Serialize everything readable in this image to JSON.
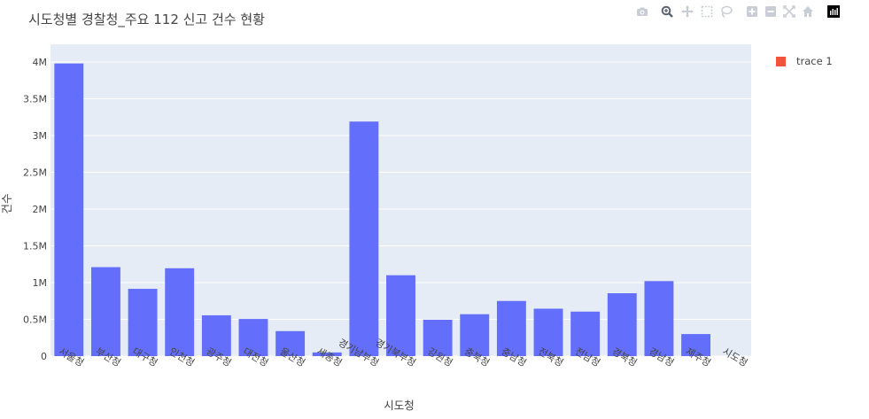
{
  "title": "시도청별 경찰청_주요 112 신고 건수 현황",
  "legend": {
    "label": "trace 1",
    "color": "#ef553b"
  },
  "modebar": {
    "buttons": [
      {
        "name": "camera-icon",
        "label": "Download plot as png"
      },
      {
        "name": "zoom-icon",
        "label": "Zoom"
      },
      {
        "name": "pan-icon",
        "label": "Pan"
      },
      {
        "name": "box-select-icon",
        "label": "Box Select"
      },
      {
        "name": "lasso-select-icon",
        "label": "Lasso Select"
      },
      {
        "name": "zoom-in-icon",
        "label": "Zoom in"
      },
      {
        "name": "zoom-out-icon",
        "label": "Zoom out"
      },
      {
        "name": "autoscale-icon",
        "label": "Autoscale"
      },
      {
        "name": "home-icon",
        "label": "Reset axes"
      },
      {
        "name": "plotly-logo-icon",
        "label": "Produced with Plotly"
      }
    ]
  },
  "chart_data": {
    "type": "bar",
    "title": "시도청별 경찰청_주요 112 신고 건수 현황",
    "xlabel": "시도청",
    "ylabel": "건수",
    "categories": [
      "서울청",
      "부산청",
      "대구청",
      "인천청",
      "광주청",
      "대전청",
      "울산청",
      "세종청",
      "경기남부청",
      "경기북부청",
      "강원청",
      "충북청",
      "충남청",
      "전북청",
      "전남청",
      "경북청",
      "경남청",
      "제주청",
      "시도청"
    ],
    "values": [
      3980000,
      1210000,
      915000,
      1195000,
      555000,
      505000,
      340000,
      50000,
      3190000,
      1100000,
      495000,
      570000,
      750000,
      645000,
      605000,
      855000,
      1020000,
      300000,
      0
    ],
    "bar_color": "#636efa",
    "plot_bgcolor": "#e5ecf6",
    "ylim": [
      0,
      4000000
    ],
    "yticks": [
      0,
      500000,
      1000000,
      1500000,
      2000000,
      2500000,
      3000000,
      3500000,
      4000000
    ],
    "ytick_labels": [
      "0",
      "0.5M",
      "1M",
      "1.5M",
      "2M",
      "2.5M",
      "3M",
      "3.5M",
      "4M"
    ],
    "grid": true,
    "legend_position": "top-right"
  }
}
